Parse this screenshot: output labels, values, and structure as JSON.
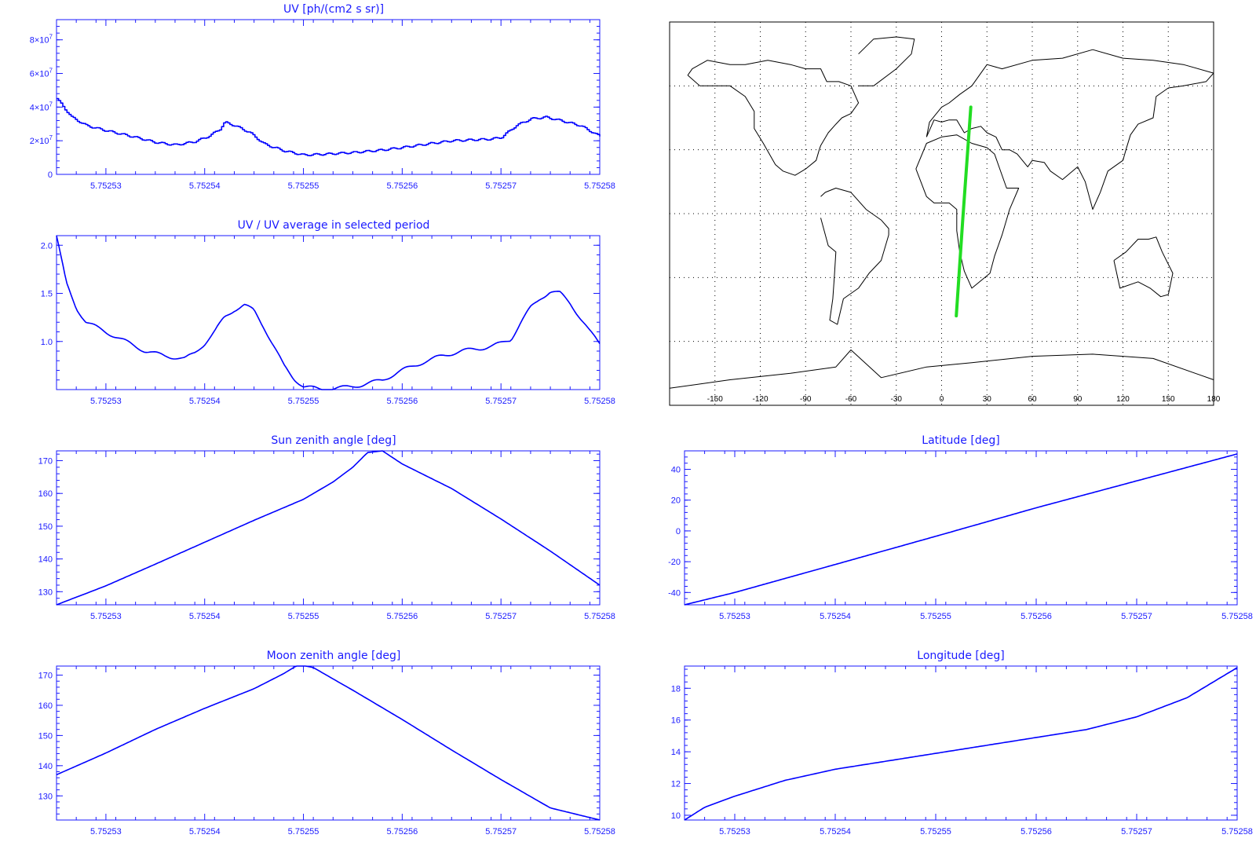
{
  "colors": {
    "axis": "#1a1aff",
    "series": "#0000ff",
    "track": "#22dd22",
    "coast": "#000000"
  },
  "chart_data": [
    {
      "id": "uv",
      "type": "line",
      "title": "UV [ph/(cm2 s sr)]",
      "xlim": [
        5.752525,
        5.75258
      ],
      "ylim": [
        0,
        92000000.0
      ],
      "xticks": [
        5.75253,
        5.75254,
        5.75255,
        5.75256,
        5.75257,
        5.75258
      ],
      "xticklabels": [
        "5.75253",
        "5.75254",
        "5.75255",
        "5.75256",
        "5.75257",
        "5.75258"
      ],
      "yticks": [
        0,
        20000000.0,
        40000000.0,
        60000000.0,
        80000000.0
      ],
      "yticklabels": [
        "0",
        "2x10^7",
        "4x10^7",
        "6x10^7",
        "8x10^7"
      ],
      "style": "step",
      "series": [
        {
          "x": [
            5.752525,
            5.7525265,
            5.752528,
            5.75253,
            5.752533,
            5.752535,
            5.752537,
            5.752539,
            5.7525405,
            5.7525415,
            5.752542,
            5.7525425,
            5.752543,
            5.7525445,
            5.752546,
            5.752548,
            5.75255,
            5.752552,
            5.752555,
            5.752558,
            5.75256,
            5.752563,
            5.752565,
            5.752567,
            5.752569,
            5.75257,
            5.7525715,
            5.752573,
            5.7525745,
            5.752576,
            5.752578,
            5.75258
          ],
          "y": [
            45000000.0,
            34000000.0,
            29000000.0,
            26000000.0,
            22000000.0,
            19000000.0,
            17500000.0,
            19500000.0,
            23000000.0,
            27000000.0,
            31000000.0,
            30000000.0,
            29000000.0,
            25000000.0,
            18000000.0,
            14000000.0,
            11500000.0,
            12000000.0,
            13000000.0,
            14500000.0,
            16000000.0,
            18500000.0,
            20000000.0,
            20500000.0,
            21000000.0,
            22000000.0,
            29000000.0,
            33000000.0,
            34000000.0,
            32000000.0,
            29000000.0,
            22500000.0
          ]
        }
      ]
    },
    {
      "id": "uvratio",
      "type": "line",
      "title": "UV / UV average in selected period",
      "xlim": [
        5.752525,
        5.75258
      ],
      "ylim": [
        0.5,
        2.1
      ],
      "xticks": [
        5.75253,
        5.75254,
        5.75255,
        5.75256,
        5.75257,
        5.75258
      ],
      "xticklabels": [
        "5.75253",
        "5.75254",
        "5.75255",
        "5.75256",
        "5.75257",
        "5.75258"
      ],
      "yticks": [
        1.0,
        1.5,
        2.0
      ],
      "yticklabels": [
        "1.0",
        "1.5",
        "2.0"
      ],
      "style": "noisy",
      "series": [
        {
          "x": [
            5.752525,
            5.752526,
            5.752527,
            5.752528,
            5.75253,
            5.752532,
            5.752534,
            5.752536,
            5.752538,
            5.752539,
            5.75254,
            5.752541,
            5.752542,
            5.752543,
            5.752544,
            5.752545,
            5.752546,
            5.752547,
            5.752548,
            5.752549,
            5.75255,
            5.752552,
            5.752554,
            5.752556,
            5.752558,
            5.75256,
            5.752562,
            5.752564,
            5.752566,
            5.752568,
            5.752569,
            5.75257,
            5.752571,
            5.752572,
            5.752573,
            5.752574,
            5.752575,
            5.752576,
            5.752577,
            5.752578,
            5.752579,
            5.75258
          ],
          "y": [
            2.1,
            1.6,
            1.35,
            1.2,
            1.1,
            1.0,
            0.9,
            0.85,
            0.82,
            0.88,
            0.98,
            1.1,
            1.25,
            1.33,
            1.38,
            1.32,
            1.15,
            0.95,
            0.75,
            0.62,
            0.53,
            0.5,
            0.52,
            0.55,
            0.6,
            0.7,
            0.78,
            0.85,
            0.9,
            0.93,
            0.95,
            0.98,
            1.02,
            1.2,
            1.35,
            1.45,
            1.52,
            1.5,
            1.4,
            1.25,
            1.1,
            0.98
          ]
        }
      ]
    },
    {
      "id": "sunza",
      "type": "line",
      "title": "Sun zenith angle [deg]",
      "xlim": [
        5.752525,
        5.75258
      ],
      "ylim": [
        126,
        173
      ],
      "xticks": [
        5.75253,
        5.75254,
        5.75255,
        5.75256,
        5.75257,
        5.75258
      ],
      "xticklabels": [
        "5.75253",
        "5.75254",
        "5.75255",
        "5.75256",
        "5.75257",
        "5.75258"
      ],
      "yticks": [
        130,
        140,
        150,
        160,
        170
      ],
      "yticklabels": [
        "130",
        "140",
        "150",
        "160",
        "170"
      ],
      "style": "smooth",
      "series": [
        {
          "x": [
            5.752525,
            5.75253,
            5.752535,
            5.75254,
            5.752545,
            5.75255,
            5.752553,
            5.752555,
            5.7525565,
            5.752558,
            5.75256,
            5.752565,
            5.75257,
            5.752575,
            5.75258
          ],
          "y": [
            126,
            131.8,
            138.4,
            145.1,
            151.8,
            158.2,
            163.5,
            168,
            172.5,
            173,
            169,
            161.5,
            152.2,
            142.4,
            132
          ]
        }
      ]
    },
    {
      "id": "moonza",
      "type": "line",
      "title": "Moon zenith angle [deg]",
      "xlim": [
        5.752525,
        5.75258
      ],
      "ylim": [
        122,
        173
      ],
      "xticks": [
        5.75253,
        5.75254,
        5.75255,
        5.75256,
        5.75257,
        5.75258
      ],
      "xticklabels": [
        "5.75253",
        "5.75254",
        "5.75255",
        "5.75256",
        "5.75257",
        "5.75258"
      ],
      "yticks": [
        130,
        140,
        150,
        160,
        170
      ],
      "yticklabels": [
        "130",
        "140",
        "150",
        "160",
        "170"
      ],
      "style": "smooth",
      "series": [
        {
          "x": [
            5.752525,
            5.75253,
            5.752535,
            5.75254,
            5.752545,
            5.752548,
            5.7525495,
            5.752551,
            5.752555,
            5.75256,
            5.752565,
            5.75257,
            5.752575,
            5.75258
          ],
          "y": [
            137,
            144.2,
            152,
            159,
            165.5,
            170.5,
            173.5,
            172.5,
            165,
            155.3,
            145.2,
            135.4,
            126,
            122
          ]
        }
      ]
    },
    {
      "id": "lat",
      "type": "line",
      "title": "Latitude [deg]",
      "xlim": [
        5.752525,
        5.75258
      ],
      "ylim": [
        -48,
        52
      ],
      "xticks": [
        5.75253,
        5.75254,
        5.75255,
        5.75256,
        5.75257,
        5.75258
      ],
      "xticklabels": [
        "5.75253",
        "5.75254",
        "5.75255",
        "5.75256",
        "5.75257",
        "5.75258"
      ],
      "yticks": [
        -40,
        -20,
        0,
        20,
        40
      ],
      "yticklabels": [
        "-40",
        "-20",
        "0",
        "20",
        "40"
      ],
      "style": "smooth",
      "series": [
        {
          "x": [
            5.752525,
            5.75253,
            5.75254,
            5.75255,
            5.75256,
            5.75257,
            5.75258
          ],
          "y": [
            -48,
            -40,
            -21.8,
            -3.5,
            15,
            32.5,
            50
          ]
        }
      ]
    },
    {
      "id": "lon",
      "type": "line",
      "title": "Longitude [deg]",
      "xlim": [
        5.752525,
        5.75258
      ],
      "ylim": [
        9.7,
        19.4
      ],
      "xticks": [
        5.75253,
        5.75254,
        5.75255,
        5.75256,
        5.75257,
        5.75258
      ],
      "xticklabels": [
        "5.75253",
        "5.75254",
        "5.75255",
        "5.75256",
        "5.75257",
        "5.75258"
      ],
      "yticks": [
        10,
        12,
        14,
        16,
        18
      ],
      "yticklabels": [
        "10",
        "12",
        "14",
        "16",
        "18"
      ],
      "style": "smooth",
      "series": [
        {
          "x": [
            5.752525,
            5.752527,
            5.75253,
            5.752535,
            5.75254,
            5.752545,
            5.75255,
            5.752555,
            5.75256,
            5.752565,
            5.75257,
            5.752575,
            5.75258
          ],
          "y": [
            9.7,
            10.5,
            11.2,
            12.2,
            12.9,
            13.4,
            13.9,
            14.4,
            14.9,
            15.4,
            16.2,
            17.4,
            19.3
          ]
        }
      ]
    }
  ],
  "map": {
    "xlim": [
      -180,
      180
    ],
    "ylim": [
      -90,
      90
    ],
    "lon_ticks": [
      -150,
      -120,
      -90,
      -60,
      -30,
      0,
      30,
      60,
      90,
      120,
      150,
      180
    ],
    "lon_ticklabels": [
      "-150",
      "-120",
      "-90",
      "-60",
      "-30",
      "0",
      "30",
      "60",
      "90",
      "120",
      "150",
      "180"
    ],
    "lat_grid": [
      -60,
      -30,
      0,
      30,
      60
    ],
    "track": {
      "lon": [
        9.7,
        13.9,
        19.3
      ],
      "lat": [
        -48,
        -3.5,
        50
      ]
    },
    "coastlines": [
      {
        "name": "north-america",
        "lon": [
          -168,
          -160,
          -150,
          -140,
          -130,
          -124,
          -124,
          -118,
          -110,
          -105,
          -97,
          -90,
          -83,
          -81,
          -80,
          -75,
          -70,
          -66,
          -60,
          -55,
          -60,
          -68,
          -76,
          -80,
          -90,
          -100,
          -115,
          -130,
          -140,
          -155,
          -165,
          -168
        ],
        "lat": [
          65,
          60,
          60,
          60,
          55,
          48,
          40,
          33,
          23,
          20,
          18,
          21,
          25,
          30,
          32,
          38,
          42,
          45,
          47,
          52,
          60,
          62,
          62,
          68,
          68,
          70,
          72,
          70,
          70,
          72,
          68,
          65
        ]
      },
      {
        "name": "south-america",
        "lon": [
          -80,
          -77,
          -70,
          -60,
          -50,
          -40,
          -35,
          -35,
          -40,
          -48,
          -55,
          -65,
          -69,
          -74,
          -72,
          -71,
          -70,
          -75,
          -80
        ],
        "lat": [
          8,
          10,
          12,
          10,
          2,
          -3,
          -7,
          -10,
          -22,
          -28,
          -35,
          -40,
          -52,
          -50,
          -40,
          -30,
          -18,
          -15,
          -2
        ]
      },
      {
        "name": "africa",
        "lon": [
          -17,
          -10,
          0,
          10,
          20,
          30,
          35,
          43,
          51,
          45,
          40,
          35,
          32,
          20,
          15,
          12,
          10,
          10,
          5,
          -5,
          -10,
          -17
        ],
        "lat": [
          21,
          33,
          36,
          37,
          33,
          31,
          28,
          12,
          12,
          2,
          -10,
          -20,
          -28,
          -35,
          -27,
          -18,
          -8,
          2,
          5,
          5,
          8,
          21
        ]
      },
      {
        "name": "eurasia",
        "lon": [
          -10,
          -8,
          0,
          5,
          12,
          20,
          30,
          40,
          60,
          80,
          100,
          120,
          140,
          160,
          180,
          175,
          160,
          150,
          142,
          140,
          130,
          125,
          122,
          120,
          110,
          105,
          100,
          95,
          90,
          80,
          72,
          68,
          60,
          57,
          50,
          45,
          40,
          36,
          30,
          26,
          20,
          15,
          10,
          5,
          0,
          -5,
          -10
        ],
        "lat": [
          36,
          43,
          50,
          52,
          56,
          60,
          70,
          68,
          72,
          73,
          77,
          73,
          72,
          70,
          66,
          62,
          60,
          59,
          55,
          45,
          42,
          37,
          30,
          25,
          20,
          10,
          2,
          15,
          22,
          16,
          20,
          24,
          25,
          22,
          28,
          30,
          30,
          36,
          38,
          41,
          40,
          38,
          44,
          44,
          43,
          44,
          36
        ]
      },
      {
        "name": "australia",
        "lon": [
          114,
          122,
          130,
          137,
          142,
          146,
          153,
          150,
          145,
          138,
          130,
          118,
          114
        ],
        "lat": [
          -22,
          -18,
          -12,
          -12,
          -11,
          -18,
          -28,
          -38,
          -39,
          -35,
          -32,
          -35,
          -22
        ]
      },
      {
        "name": "greenland",
        "lon": [
          -55,
          -45,
          -30,
          -20,
          -18,
          -30,
          -45,
          -55
        ],
        "lat": [
          60,
          60,
          68,
          75,
          82,
          83,
          82,
          75
        ]
      },
      {
        "name": "antarctica",
        "lon": [
          -180,
          -140,
          -100,
          -70,
          -60,
          -40,
          -10,
          20,
          60,
          100,
          140,
          180
        ],
        "lat": [
          -82,
          -78,
          -75,
          -72,
          -64,
          -77,
          -72,
          -70,
          -67,
          -66,
          -68,
          -78
        ]
      }
    ]
  }
}
